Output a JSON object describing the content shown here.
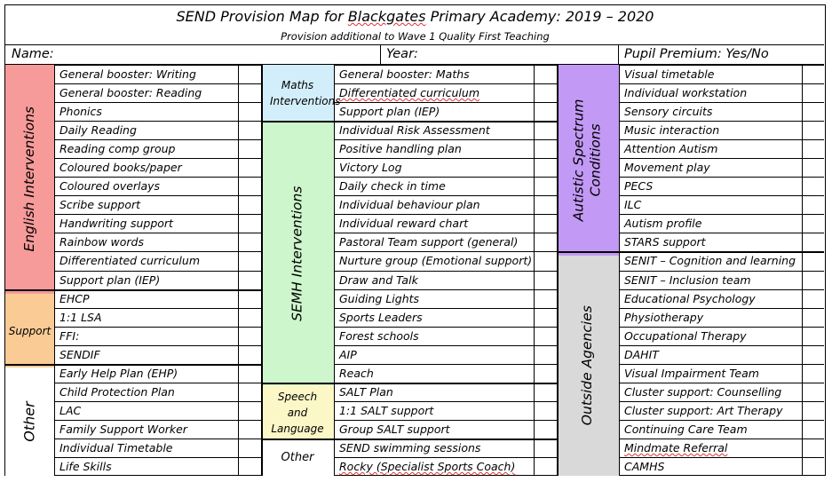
{
  "title": {
    "prefix": "SEND Provision Map for ",
    "school": "Blackgates",
    "suffix": " Primary Academy: 2019 – 2020",
    "subtitle": "Provision additional to Wave 1 Quality First Teaching"
  },
  "header": {
    "name_label": "Name:",
    "year_label": "Year:",
    "pupil_premium": "Pupil Premium: Yes/No"
  },
  "colors": {
    "english": "#f79a9a",
    "support": "#facb95",
    "maths": "#d3eefb",
    "semh": "#cdf6cc",
    "speech": "#fcf7c7",
    "autistic": "#c299f4",
    "outside": "#d9d9d9"
  },
  "col1": {
    "groups": [
      {
        "label": "English Interventions",
        "items": [
          "General booster: Writing",
          "General booster: Reading",
          "Phonics",
          "Daily Reading",
          "Reading comp group",
          "Coloured books/paper",
          "Coloured overlays",
          "Scribe support",
          "Handwriting support",
          "Rainbow words",
          "Differentiated curriculum",
          "Support plan (IEP)"
        ]
      },
      {
        "label": "Support",
        "items": [
          "EHCP",
          "1:1 LSA",
          "FFI:",
          "SENDIF"
        ]
      },
      {
        "label": "Other",
        "items": [
          "Early Help Plan (EHP)",
          "Child Protection Plan",
          "LAC",
          "Family Support Worker",
          "Individual Timetable",
          "Life Skills"
        ]
      }
    ]
  },
  "col2": {
    "groups": [
      {
        "label": "Maths Interventions",
        "items": [
          "General booster: Maths",
          "Differentiated curriculum",
          "Support plan (IEP)"
        ]
      },
      {
        "label": "SEMH Interventions",
        "items": [
          "Individual Risk Assessment",
          "Positive handling plan",
          "Victory Log",
          "Daily check in time",
          "Individual behaviour plan",
          "Individual reward chart",
          "Pastoral Team support (general)",
          "Nurture group (Emotional support)",
          "Draw and Talk",
          "Guiding Lights",
          "Sports Leaders",
          "Forest schools",
          "AIP",
          "Reach"
        ]
      },
      {
        "label": "Speech and Language",
        "items": [
          "SALT Plan",
          "1:1 SALT support",
          "Group SALT support"
        ]
      },
      {
        "label": "Other",
        "items": [
          "SEND swimming sessions",
          "Rocky (Specialist Sports Coach)"
        ]
      }
    ]
  },
  "col3": {
    "groups": [
      {
        "label": "Autistic Spectrum Conditions",
        "items": [
          "Visual timetable",
          "Individual workstation",
          "Sensory circuits",
          "Music interaction",
          "Attention Autism",
          "Movement play",
          "PECS",
          "ILC",
          "Autism profile",
          "STARS support"
        ]
      },
      {
        "label": "Outside Agencies",
        "items": [
          "SENIT – Cognition and learning",
          "SENIT – Inclusion team",
          "Educational Psychology",
          "Physiotherapy",
          "Occupational Therapy",
          "DAHIT",
          "Visual Impairment Team",
          "Cluster support: Counselling",
          "Cluster support: Art Therapy",
          "Continuing Care Team",
          "Mindmate Referral",
          "CAMHS"
        ]
      }
    ]
  }
}
